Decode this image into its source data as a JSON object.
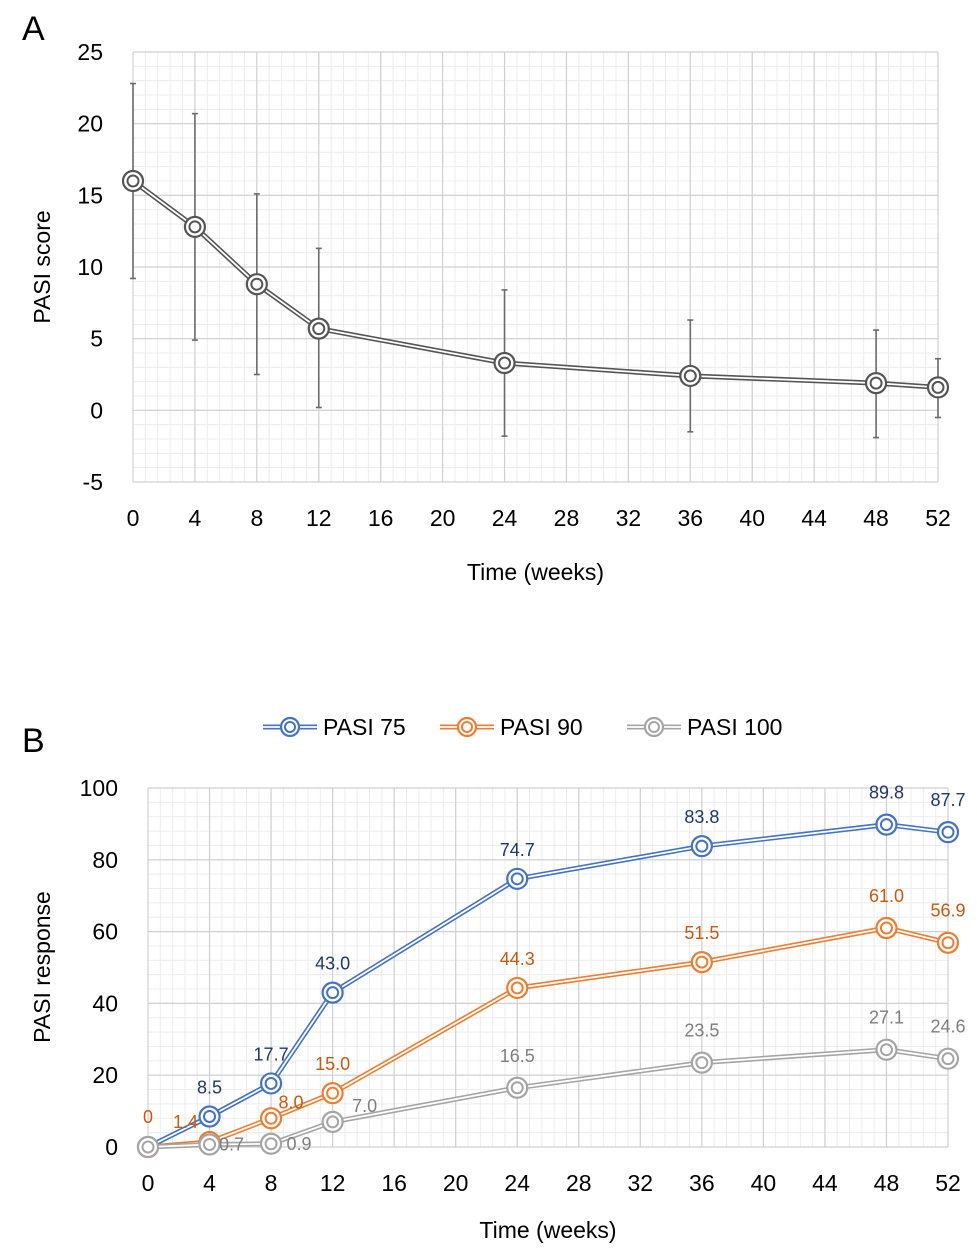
{
  "chart_data": [
    {
      "panel_label": "A",
      "type": "line",
      "title": "",
      "xlabel": "Time (weeks)",
      "ylabel": "PASI score",
      "xlim": [
        0,
        52
      ],
      "ylim": [
        -5,
        25
      ],
      "x_ticks": [
        0,
        4,
        8,
        12,
        16,
        20,
        24,
        28,
        32,
        36,
        40,
        44,
        48,
        52
      ],
      "y_ticks": [
        -5,
        0,
        5,
        10,
        15,
        20,
        25
      ],
      "grid": true,
      "legend": "none",
      "series": [
        {
          "color": "#555555",
          "x": [
            0,
            4,
            8,
            12,
            24,
            36,
            48,
            52
          ],
          "values": [
            16.0,
            12.8,
            8.8,
            5.7,
            3.3,
            2.4,
            1.9,
            1.6
          ],
          "error_low": [
            9.2,
            4.9,
            2.5,
            0.2,
            -1.8,
            -1.5,
            -1.9,
            -0.5
          ],
          "error_high": [
            22.8,
            20.7,
            15.1,
            11.3,
            8.4,
            6.3,
            5.6,
            3.6
          ]
        }
      ]
    },
    {
      "panel_label": "B",
      "type": "line",
      "title": "",
      "xlabel": "Time (weeks)",
      "ylabel": "PASI response",
      "xlim": [
        0,
        52
      ],
      "ylim": [
        0,
        100
      ],
      "x_ticks": [
        0,
        4,
        8,
        12,
        16,
        20,
        24,
        28,
        32,
        36,
        40,
        44,
        48,
        52
      ],
      "y_ticks": [
        0,
        20,
        40,
        60,
        80,
        100
      ],
      "grid": true,
      "legend": "top",
      "series": [
        {
          "name": "PASI 75",
          "color": "#4472C4",
          "label_color": "#203864",
          "x": [
            0,
            4,
            8,
            12,
            24,
            36,
            48,
            52
          ],
          "values": [
            0,
            8.5,
            17.7,
            43.0,
            74.7,
            83.8,
            89.8,
            87.7
          ],
          "labels": [
            "",
            "8.5",
            "17.7",
            "43.0",
            "74.7",
            "83.8",
            "89.8",
            "87.7"
          ]
        },
        {
          "name": "PASI 90",
          "color": "#ED7D31",
          "label_color": "#C55A11",
          "x": [
            0,
            4,
            8,
            12,
            24,
            36,
            48,
            52
          ],
          "values": [
            0,
            1.4,
            8.0,
            15.0,
            44.3,
            51.5,
            61.0,
            56.9
          ],
          "labels": [
            "0",
            "1.4",
            "8.0",
            "15.0",
            "44.3",
            "51.5",
            "61.0",
            "56.9"
          ]
        },
        {
          "name": "PASI 100",
          "color": "#A5A5A5",
          "label_color": "#7F7F7F",
          "x": [
            0,
            4,
            8,
            12,
            24,
            36,
            48,
            52
          ],
          "values": [
            0,
            0.7,
            0.9,
            7.0,
            16.5,
            23.5,
            27.1,
            24.6
          ],
          "labels": [
            "",
            "0.7",
            "0.9",
            "7.0",
            "16.5",
            "23.5",
            "27.1",
            "24.6"
          ]
        }
      ]
    }
  ]
}
